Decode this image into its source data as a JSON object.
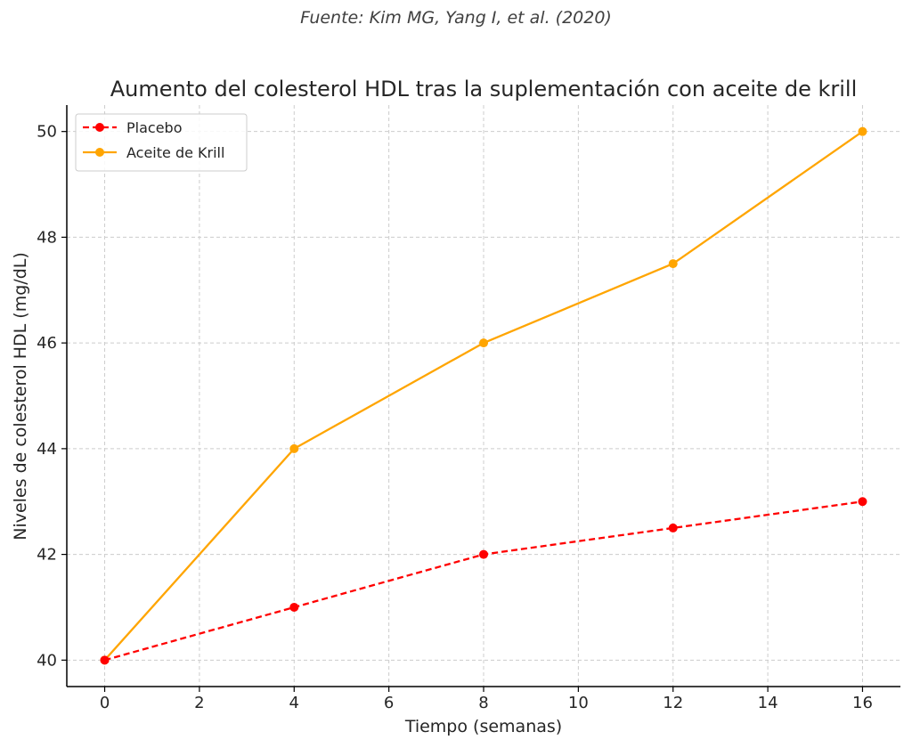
{
  "source_note": "Fuente: Kim MG, Yang I, et al. (2020)",
  "chart_data": {
    "type": "line",
    "title": "Aumento del colesterol HDL tras la suplementación con aceite de krill",
    "xlabel": "Tiempo (semanas)",
    "ylabel": "Niveles de colesterol HDL (mg/dL)",
    "x": [
      0,
      4,
      8,
      12,
      16
    ],
    "xlim": [
      -0.8,
      16.8
    ],
    "ylim": [
      39.5,
      50.5
    ],
    "xticks": [
      0,
      2,
      4,
      6,
      8,
      10,
      12,
      14,
      16
    ],
    "yticks": [
      40,
      42,
      44,
      46,
      48,
      50
    ],
    "grid": true,
    "legend_position": "top-left",
    "series": [
      {
        "name": "Placebo",
        "values": [
          40,
          41,
          42,
          42.5,
          43
        ],
        "color": "#ff0000",
        "line_style": "dashed",
        "marker": "circle"
      },
      {
        "name": "Aceite de Krill",
        "values": [
          40,
          44,
          46,
          47.5,
          50
        ],
        "color": "#ffa500",
        "line_style": "solid",
        "marker": "circle"
      }
    ]
  }
}
